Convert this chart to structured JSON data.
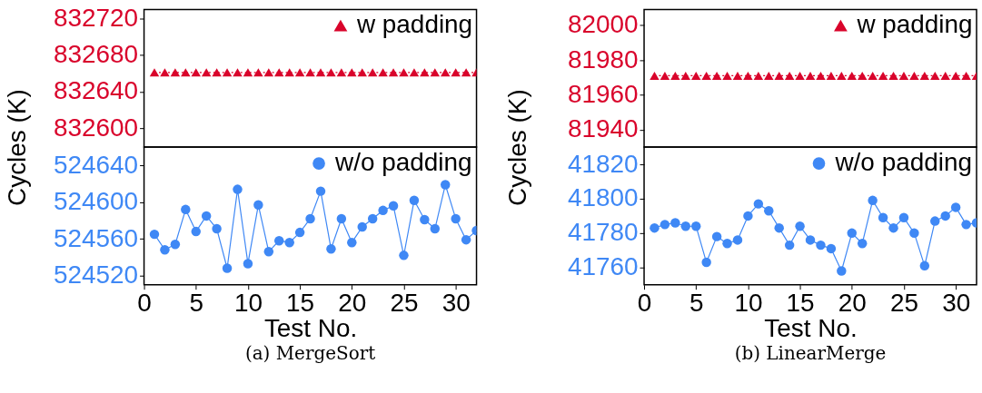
{
  "chart_data": [
    {
      "type": "line",
      "ylabel": "Cycles (K)",
      "xlim": [
        0,
        32
      ],
      "ylim": [
        832579,
        832730
      ],
      "yticks": [
        832600,
        832640,
        832680,
        832720
      ],
      "tick_labels": "y",
      "grid": false,
      "legend": "top right",
      "marker": "triangle",
      "line_style": "dotted",
      "x": [
        1,
        2,
        3,
        4,
        5,
        6,
        7,
        8,
        9,
        10,
        11,
        12,
        13,
        14,
        15,
        16,
        17,
        18,
        19,
        20,
        21,
        22,
        23,
        24,
        25,
        26,
        27,
        28,
        29,
        30,
        31,
        32
      ],
      "series": [
        {
          "name": "w padding",
          "color": "#d9042b",
          "values": [
            832661,
            832661,
            832661,
            832661,
            832661,
            832661,
            832661,
            832661,
            832661,
            832661,
            832661,
            832661,
            832661,
            832661,
            832661,
            832661,
            832661,
            832661,
            832661,
            832661,
            832661,
            832661,
            832661,
            832661,
            832661,
            832661,
            832661,
            832661,
            832661,
            832661,
            832661,
            832661
          ]
        }
      ]
    },
    {
      "type": "line",
      "xlabel": "Test No.",
      "xlim": [
        0,
        32
      ],
      "xticks": [
        0,
        5,
        10,
        15,
        20,
        25,
        30
      ],
      "ylim": [
        524510,
        524660
      ],
      "yticks": [
        524520,
        524560,
        524600,
        524640
      ],
      "grid": false,
      "legend": "top right",
      "marker": "circle",
      "line_style": "solid",
      "annotations": [
        "(a) MergeSort"
      ],
      "x": [
        1,
        2,
        3,
        4,
        5,
        6,
        7,
        8,
        9,
        10,
        11,
        12,
        13,
        14,
        15,
        16,
        17,
        18,
        19,
        20,
        21,
        22,
        23,
        24,
        25,
        26,
        27,
        28,
        29,
        30,
        31,
        32
      ],
      "series": [
        {
          "name": "w/o padding",
          "color": "#3f88f5",
          "values": [
            524565,
            524548,
            524554,
            524592,
            524568,
            524585,
            524571,
            524528,
            524614,
            524533,
            524597,
            524546,
            524558,
            524556,
            524567,
            524582,
            524612,
            524549,
            524582,
            524556,
            524573,
            524582,
            524591,
            524596,
            524542,
            524602,
            524581,
            524571,
            524619,
            524582,
            524559,
            524569
          ]
        }
      ]
    },
    {
      "type": "line",
      "ylabel": "Cycles (K)",
      "xlim": [
        0,
        32
      ],
      "ylim": [
        81930,
        82009
      ],
      "yticks": [
        81940,
        81960,
        81980,
        82000
      ],
      "tick_labels": "y",
      "grid": false,
      "legend": "top right",
      "marker": "triangle",
      "line_style": "dotted",
      "x": [
        1,
        2,
        3,
        4,
        5,
        6,
        7,
        8,
        9,
        10,
        11,
        12,
        13,
        14,
        15,
        16,
        17,
        18,
        19,
        20,
        21,
        22,
        23,
        24,
        25,
        26,
        27,
        28,
        29,
        30,
        31,
        32
      ],
      "series": [
        {
          "name": "w padding",
          "color": "#d9042b",
          "values": [
            81971,
            81971,
            81971,
            81971,
            81971,
            81971,
            81971,
            81971,
            81971,
            81971,
            81971,
            81971,
            81971,
            81971,
            81971,
            81971,
            81971,
            81971,
            81971,
            81971,
            81971,
            81971,
            81971,
            81971,
            81971,
            81971,
            81971,
            81971,
            81971,
            81971,
            81971,
            81971
          ]
        }
      ]
    },
    {
      "type": "line",
      "xlabel": "Test No.",
      "xlim": [
        0,
        32
      ],
      "xticks": [
        0,
        5,
        10,
        15,
        20,
        25,
        30
      ],
      "ylim": [
        41750,
        41830
      ],
      "yticks": [
        41760,
        41780,
        41800,
        41820
      ],
      "grid": false,
      "legend": "top right",
      "marker": "circle",
      "line_style": "solid",
      "annotations": [
        "(b) LinearMerge"
      ],
      "x": [
        1,
        2,
        3,
        4,
        5,
        6,
        7,
        8,
        9,
        10,
        11,
        12,
        13,
        14,
        15,
        16,
        17,
        18,
        19,
        20,
        21,
        22,
        23,
        24,
        25,
        26,
        27,
        28,
        29,
        30,
        31,
        32
      ],
      "series": [
        {
          "name": "w/o padding",
          "color": "#3f88f5",
          "values": [
            41783,
            41785,
            41786,
            41784,
            41784,
            41763,
            41778,
            41774,
            41776,
            41790,
            41797,
            41793,
            41783,
            41773,
            41784,
            41776,
            41773,
            41771,
            41758,
            41780,
            41774,
            41799,
            41789,
            41783,
            41789,
            41780,
            41761,
            41787,
            41790,
            41795,
            41785,
            41786
          ]
        }
      ]
    }
  ]
}
